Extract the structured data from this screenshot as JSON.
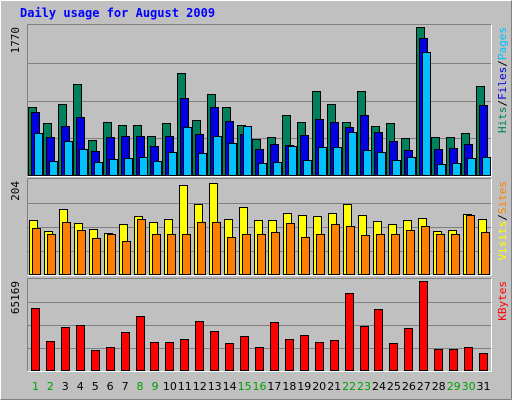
{
  "window": {
    "title": "Daily usage for August 2009",
    "colors": {
      "background": "#c0c0c0",
      "panel_border": "#808080",
      "title": "#0000ff",
      "weekend_day": "#00a000",
      "weekday": "#000000",
      "hits": "#00805c",
      "files": "#0000e0",
      "pages": "#00c0ff",
      "visits": "#ffff00",
      "sites": "#ff8000",
      "kbytes": "#ff0000"
    }
  },
  "chart_data": {
    "type": "bar",
    "title": "Daily usage for August 2009",
    "categories": [
      "1",
      "2",
      "3",
      "4",
      "5",
      "6",
      "7",
      "8",
      "9",
      "10",
      "11",
      "12",
      "13",
      "14",
      "15",
      "16",
      "17",
      "18",
      "19",
      "20",
      "21",
      "22",
      "23",
      "24",
      "25",
      "26",
      "27",
      "28",
      "29",
      "30",
      "31"
    ],
    "weekend_days": [
      "1",
      "2",
      "8",
      "9",
      "15",
      "16",
      "22",
      "23",
      "29",
      "30"
    ],
    "panels": [
      {
        "id": "hits-files-pages",
        "ymax_label": "1770",
        "ymax": 1770,
        "legend": [
          {
            "text": "Hits",
            "color": "#00805c"
          },
          {
            "text": "/",
            "color": "#000000"
          },
          {
            "text": "Files",
            "color": "#0000e0"
          },
          {
            "text": "/",
            "color": "#000000"
          },
          {
            "text": "Pages",
            "color": "#00c0ff"
          }
        ],
        "series": [
          {
            "name": "Hits",
            "color": "#00805c",
            "values": [
              820,
              630,
              850,
              1090,
              430,
              640,
              600,
              600,
              480,
              630,
              1220,
              660,
              980,
              820,
              610,
              440,
              460,
              730,
              640,
              1010,
              860,
              640,
              1010,
              590,
              630,
              450,
              1770,
              460,
              460,
              510,
              1070
            ]
          },
          {
            "name": "Files",
            "color": "#0000e0",
            "values": [
              760,
              460,
              590,
              700,
              300,
              460,
              470,
              480,
              360,
              480,
              930,
              500,
              820,
              650,
              500,
              320,
              380,
              370,
              490,
              680,
              640,
              580,
              730,
              520,
              410,
              310,
              1640,
              320,
              330,
              380,
              840
            ]
          },
          {
            "name": "Pages",
            "color": "#00c0ff",
            "values": [
              510,
              180,
              420,
              320,
              170,
              200,
              210,
              220,
              180,
              280,
              580,
              270,
              470,
              390,
              590,
              150,
              170,
              360,
              190,
              350,
              340,
              520,
              310,
              290,
              190,
              220,
              1470,
              140,
              150,
              210,
              230
            ]
          }
        ]
      },
      {
        "id": "visits-sites",
        "ymax_label": "204",
        "ymax": 204,
        "legend": [
          {
            "text": "Visits",
            "color": "#ffff00"
          },
          {
            "text": "/",
            "color": "#000000"
          },
          {
            "text": "Sites",
            "color": "#ff8000"
          }
        ],
        "series": [
          {
            "name": "Visits",
            "color": "#ffff00",
            "values": [
              120,
              96,
              144,
              113,
              100,
              92,
              110,
              128,
              115,
              122,
              195,
              154,
              200,
              122,
              147,
              120,
              120,
              135,
              130,
              128,
              134,
              155,
              130,
              118,
              111,
              120,
              124,
              95,
              98,
              132,
              122
            ]
          },
          {
            "name": "Sites",
            "color": "#ff8000",
            "values": [
              102,
              89,
              115,
              98,
              80,
              88,
              74,
              122,
              90,
              89,
              88,
              115,
              114,
              83,
              88,
              90,
              94,
              112,
              82,
              88,
              110,
              106,
              87,
              89,
              88,
              98,
              106,
              88,
              90,
              130,
              94
            ]
          }
        ]
      },
      {
        "id": "kbytes",
        "ymax_label": "65169",
        "ymax": 65169,
        "legend": [
          {
            "text": "KBytes",
            "color": "#ff0000"
          }
        ],
        "series": [
          {
            "name": "KBytes",
            "color": "#ff0000",
            "values": [
              45290,
              22040,
              31620,
              33030,
              14920,
              17380,
              28060,
              40180,
              20800,
              20640,
              23170,
              36170,
              28900,
              20620,
              25300,
              17620,
              35380,
              23210,
              26190,
              20830,
              22490,
              56790,
              32320,
              45170,
              20460,
              30890,
              65169,
              15690,
              16140,
              17200,
              13170
            ]
          }
        ]
      }
    ]
  }
}
